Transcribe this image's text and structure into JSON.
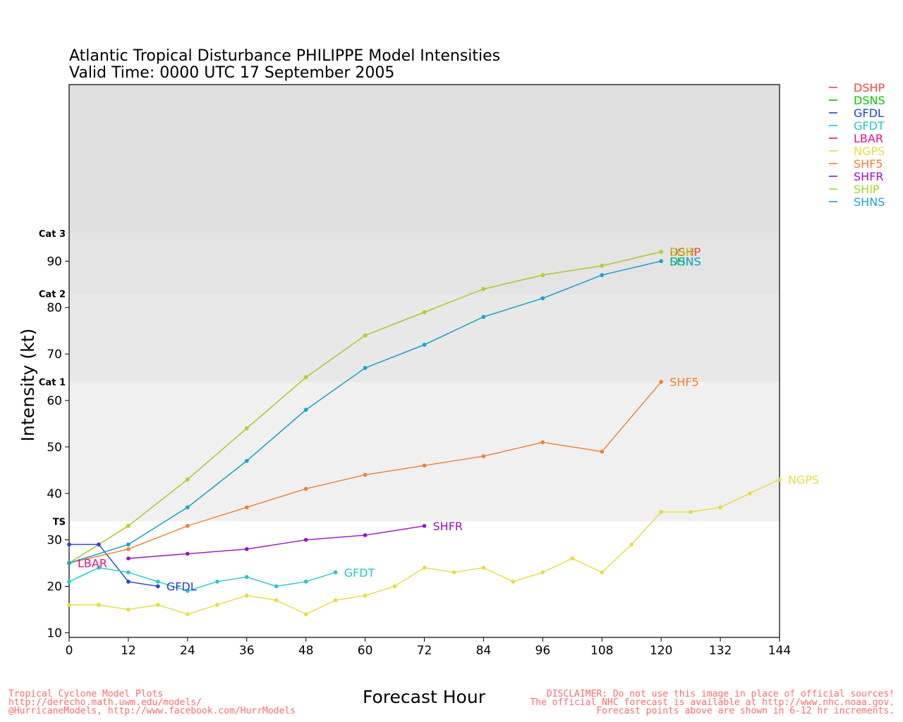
{
  "chart_data": {
    "type": "line",
    "title": "Atlantic Tropical Disturbance PHILIPPE Model Intensities",
    "subtitle": "Valid Time: 0000 UTC 17 September 2005",
    "xlabel": "Forecast Hour",
    "ylabel": "Intensity (kt)",
    "xlim": [
      0,
      144
    ],
    "ylim": [
      9,
      128
    ],
    "xticks": [
      0,
      12,
      24,
      36,
      48,
      60,
      72,
      84,
      96,
      108,
      120,
      132,
      144
    ],
    "yticks": [
      10,
      20,
      30,
      40,
      50,
      60,
      70,
      80,
      90
    ],
    "legend_position": "right",
    "bands": [
      {
        "label": "TS",
        "from": 34,
        "to": 64,
        "color": "#f0f0f0"
      },
      {
        "label": "Cat 1",
        "from": 64,
        "to": 83,
        "color": "#e8e8e8"
      },
      {
        "label": "Cat 2",
        "from": 83,
        "to": 96,
        "color": "#e4e4e4"
      },
      {
        "label": "Cat 3",
        "from": 96,
        "to": 128,
        "color": "#e0e0e0"
      }
    ],
    "series": [
      {
        "name": "DSHP",
        "color": "#ff4040",
        "x": [
          0,
          12,
          24,
          36,
          48,
          60,
          72,
          84,
          96,
          108,
          120
        ],
        "y": [
          25,
          33,
          43,
          54,
          65,
          74,
          79,
          84,
          87,
          89,
          92
        ],
        "label": "DSHP"
      },
      {
        "name": "DSNS",
        "color": "#00cc00",
        "x": [
          0,
          12,
          24,
          36,
          48,
          60,
          72,
          84,
          96,
          108,
          120
        ],
        "y": [
          25,
          29,
          37,
          47,
          58,
          67,
          72,
          78,
          82,
          87,
          90
        ],
        "label": "DSNS"
      },
      {
        "name": "GFDL",
        "color": "#2040e0",
        "x": [
          0,
          6,
          12,
          18
        ],
        "y": [
          29,
          29,
          21,
          20
        ],
        "label": "GFDL"
      },
      {
        "name": "GFDT",
        "color": "#20c8c8",
        "x": [
          0,
          6,
          12,
          18,
          24,
          30,
          36,
          42,
          48,
          54
        ],
        "y": [
          21,
          24,
          23,
          21,
          19,
          21,
          22,
          20,
          21,
          23
        ],
        "label": "GFDT"
      },
      {
        "name": "LBAR",
        "color": "#e8107a",
        "x": [
          0
        ],
        "y": [
          25
        ],
        "label": "LBAR"
      },
      {
        "name": "NGPS",
        "color": "#e6dc3c",
        "x": [
          0,
          6,
          12,
          18,
          24,
          30,
          36,
          42,
          48,
          54,
          60,
          66,
          72,
          78,
          84,
          90,
          96,
          102,
          108,
          114,
          120,
          126,
          132,
          138,
          144
        ],
        "y": [
          16,
          16,
          15,
          16,
          14,
          16,
          18,
          17,
          14,
          17,
          18,
          20,
          24,
          23,
          24,
          21,
          23,
          26,
          23,
          29,
          36,
          36,
          37,
          40,
          43
        ],
        "label": "NGPS"
      },
      {
        "name": "SHF5",
        "color": "#f07f2d",
        "x": [
          0,
          12,
          24,
          36,
          48,
          60,
          72,
          84,
          96,
          108,
          120
        ],
        "y": [
          25,
          28,
          33,
          37,
          41,
          44,
          46,
          48,
          51,
          49,
          64
        ],
        "label": "SHF5"
      },
      {
        "name": "SHFR",
        "color": "#9a10c8",
        "x": [
          12,
          24,
          36,
          48,
          60,
          72
        ],
        "y": [
          26,
          27,
          28,
          30,
          31,
          33
        ],
        "label": "SHFR"
      },
      {
        "name": "SHIP",
        "color": "#a8d62a",
        "x": [
          0,
          12,
          24,
          36,
          48,
          60,
          72,
          84,
          96,
          108,
          120
        ],
        "y": [
          25,
          33,
          43,
          54,
          65,
          74,
          79,
          84,
          87,
          89,
          92
        ],
        "label": "SHIP"
      },
      {
        "name": "SHNS",
        "color": "#1ea0dc",
        "x": [
          0,
          12,
          24,
          36,
          48,
          60,
          72,
          84,
          96,
          108,
          120
        ],
        "y": [
          25,
          29,
          37,
          47,
          58,
          67,
          72,
          78,
          82,
          87,
          90
        ],
        "label": "SHNS"
      }
    ]
  },
  "footer": {
    "left": [
      "Tropical Cyclone Model Plots",
      "http://derecho.math.uwm.edu/models/",
      "@HurricaneModels, http://www.facebook.com/HurrModels"
    ],
    "right": [
      "DISCLAIMER: Do not use this image in place of official sources!",
      "The official NHC forecast is available at http://www.nhc.noaa.gov.",
      "Forecast points above are shown in 6-12 hr increments."
    ]
  }
}
